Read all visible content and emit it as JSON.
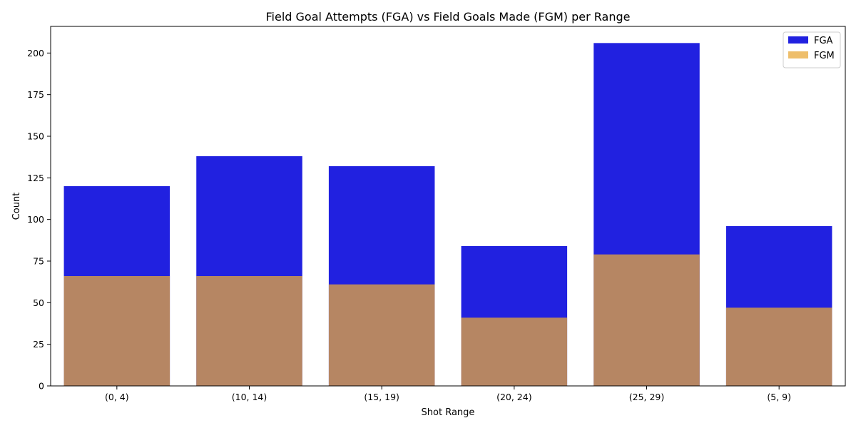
{
  "chart_data": {
    "type": "bar",
    "title": "Field Goal Attempts (FGA) vs Field Goals Made (FGM) per Range",
    "xlabel": "Shot Range",
    "ylabel": "Count",
    "categories": [
      "(0, 4)",
      "(10, 14)",
      "(15, 19)",
      "(20, 24)",
      "(25, 29)",
      "(5, 9)"
    ],
    "series": [
      {
        "name": "FGA",
        "values": [
          120,
          138,
          132,
          84,
          206,
          96
        ],
        "color": "#2121e0"
      },
      {
        "name": "FGM",
        "values": [
          66,
          66,
          61,
          41,
          79,
          47
        ],
        "color": "#e8a83a",
        "alpha": 0.75
      }
    ],
    "ylim": [
      0,
      216
    ],
    "yticks": [
      0,
      25,
      50,
      75,
      100,
      125,
      150,
      175,
      200
    ],
    "overlay": true,
    "grid": false,
    "legend": "top-right"
  }
}
